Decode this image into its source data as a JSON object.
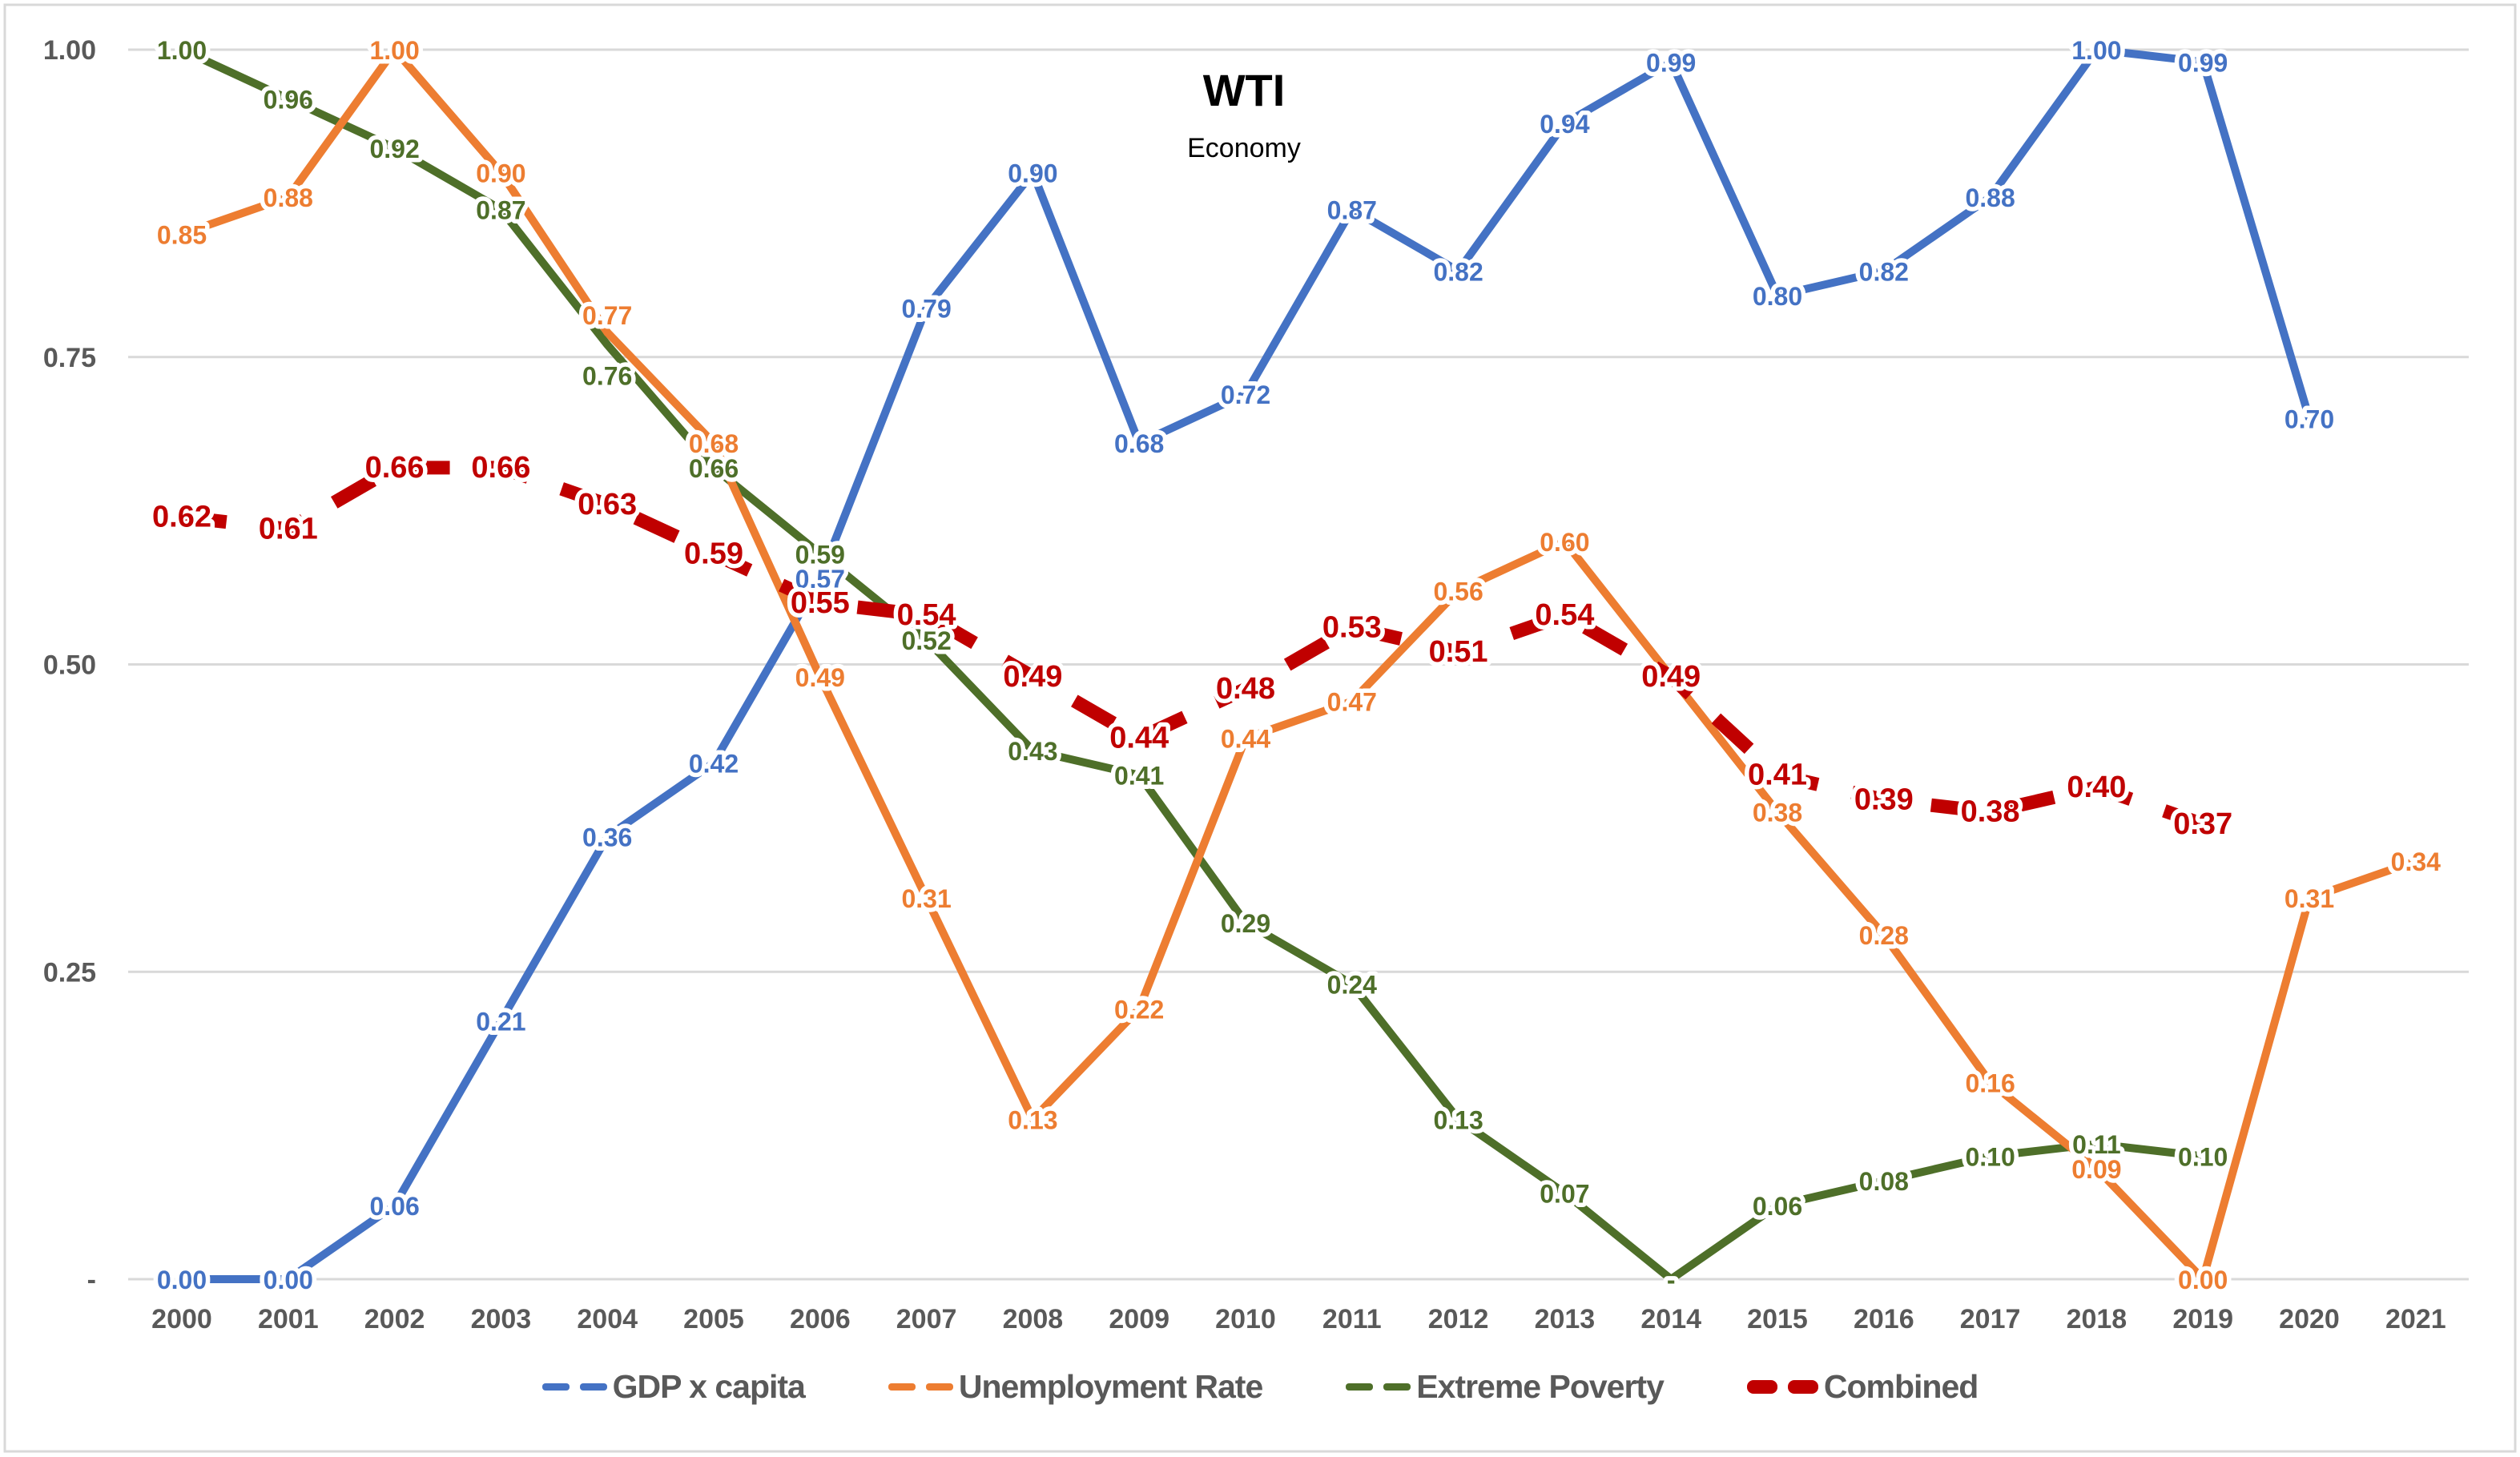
{
  "window": {
    "background": "#FFFFFF",
    "border_color": "#D9D9D9"
  },
  "chart_data": {
    "type": "line",
    "title": "WTI",
    "subtitle": "Economy",
    "categories": [
      "2000",
      "2001",
      "2002",
      "2003",
      "2004",
      "2005",
      "2006",
      "2007",
      "2008",
      "2009",
      "2010",
      "2011",
      "2012",
      "2013",
      "2014",
      "2015",
      "2016",
      "2017",
      "2018",
      "2019",
      "2020",
      "2021"
    ],
    "y_axis": {
      "tick_labels": [
        "1.00",
        "0.75",
        "0.50",
        "0.25",
        "-"
      ],
      "tick_values": [
        1.0,
        0.75,
        0.5,
        0.25,
        0.0
      ],
      "min": 0,
      "max": 1
    },
    "grid": "horizontal",
    "legend_position": "bottom",
    "colors": {
      "axis_text": "#595959",
      "gridline": "#D9D9D9",
      "legend_text": "#595959",
      "title_text": "#000000"
    },
    "series": [
      {
        "name": "GDP x capita",
        "color": "#4472C4",
        "line_style": "solid",
        "values": [
          0.0,
          0.0,
          0.06,
          0.21,
          0.36,
          0.42,
          0.57,
          0.79,
          0.9,
          0.68,
          0.72,
          0.87,
          0.82,
          0.94,
          0.99,
          0.8,
          0.82,
          0.88,
          1.0,
          0.99,
          0.7,
          null
        ],
        "labels": [
          "0.00",
          "0.00",
          "0.06",
          "0.21",
          "0.36",
          "0.42",
          "0.57",
          "0.79",
          "0.90",
          "0.68",
          "0.72",
          "0.87",
          "0.82",
          "0.94",
          "0.99",
          "0.80",
          "0.82",
          "0.88",
          "1.00",
          "0.99",
          "0.70",
          null
        ]
      },
      {
        "name": "Extreme Poverty",
        "color": "#4E6F29",
        "line_style": "solid",
        "values": [
          1.0,
          0.96,
          0.92,
          0.87,
          0.76,
          0.66,
          0.59,
          0.52,
          0.43,
          0.41,
          0.29,
          0.24,
          0.13,
          0.07,
          0.0,
          0.06,
          0.08,
          0.1,
          0.11,
          0.1,
          null,
          null
        ],
        "labels": [
          "1.00",
          "0.96",
          "0.92",
          "0.87",
          "0.76",
          "0.66",
          "0.59",
          "0.52",
          "0.43",
          "0.41",
          "0.29",
          "0.24",
          "0.13",
          "0.07",
          "-",
          "0.06",
          "0.08",
          "0.10",
          "0.11",
          "0.10",
          null,
          null
        ],
        "label_dy": {
          "4": 38
        }
      },
      {
        "name": "Unemployment Rate",
        "color": "#ED7D31",
        "line_style": "solid",
        "values": [
          0.85,
          0.88,
          1.0,
          0.9,
          0.77,
          0.68,
          0.49,
          0.31,
          0.13,
          0.22,
          0.44,
          0.47,
          0.56,
          0.6,
          0.49,
          0.38,
          0.28,
          0.16,
          0.09,
          0.0,
          0.31,
          0.34
        ],
        "labels": [
          "0.85",
          "0.88",
          "1.00",
          "0.90",
          "0.77",
          "0.68",
          "0.49",
          "0.31",
          "0.13",
          "0.22",
          "0.44",
          "0.47",
          "0.56",
          "0.60",
          null,
          "0.38",
          "0.28",
          "0.16",
          "0.09",
          "0.00",
          "0.31",
          "0.34"
        ],
        "label_dy": {
          "4": -22
        }
      },
      {
        "name": "Combined",
        "color": "#C00000",
        "line_style": "dashed-thick",
        "values": [
          0.62,
          0.61,
          0.66,
          0.66,
          0.63,
          0.59,
          0.55,
          0.54,
          0.49,
          0.44,
          0.48,
          0.53,
          0.51,
          0.54,
          0.49,
          0.41,
          0.39,
          0.38,
          0.4,
          0.37,
          null,
          null
        ],
        "labels": [
          "0.62",
          "0.61",
          "0.66",
          "0.66",
          "0.63",
          "0.59",
          "0.55",
          "0.54",
          "0.49",
          "0.44",
          "0.48",
          "0.53",
          "0.51",
          "0.54",
          "0.49",
          "0.41",
          "0.39",
          "0.38",
          "0.40",
          "0.37",
          null,
          null
        ]
      }
    ],
    "legend_order": [
      "GDP x capita",
      "Unemployment Rate",
      "Extreme Poverty",
      "Combined"
    ]
  }
}
